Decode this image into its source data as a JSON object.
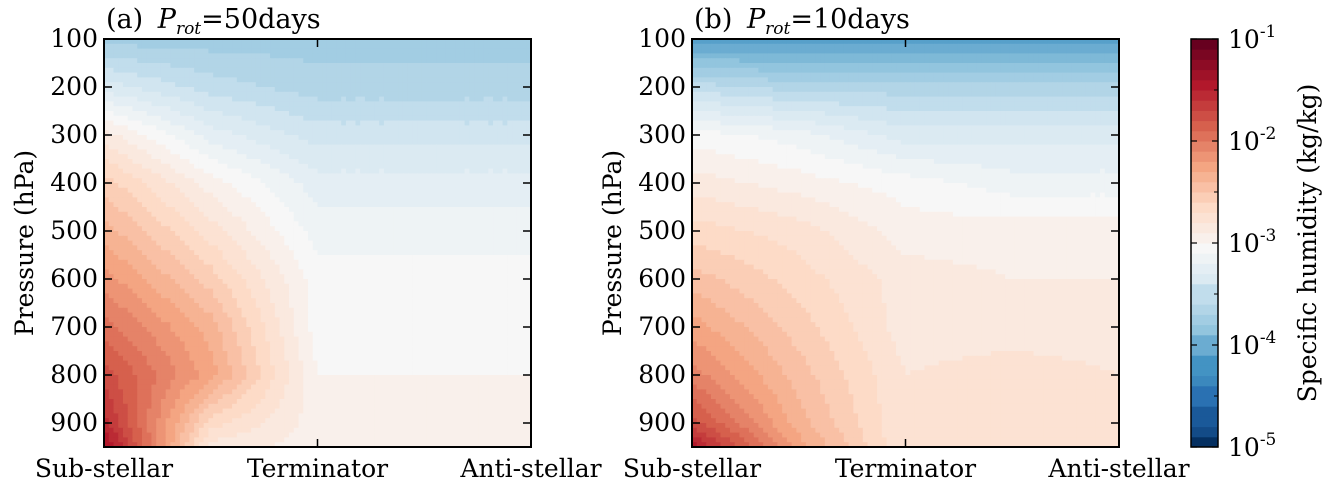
{
  "chart_data": [
    {
      "type": "heatmap",
      "panel_label": "(a)",
      "title_var": "P",
      "title_sub": "rot",
      "title_eq": "=50days",
      "ylabel": "Pressure (hPa)",
      "yticks": [
        "100",
        "200",
        "300",
        "400",
        "500",
        "600",
        "700",
        "800",
        "900"
      ],
      "ylim": [
        100,
        950
      ],
      "y_inverted": true,
      "xticks": [
        "Sub-stellar",
        "Terminator",
        "Anti-stellar"
      ],
      "x_positions": [
        0,
        0.5,
        1
      ],
      "grid": false,
      "approx_log10_humidity": {
        "x": [
          0,
          0.25,
          0.5,
          0.75,
          1
        ],
        "pressure": [
          100,
          200,
          300,
          400,
          500,
          600,
          700,
          800,
          900,
          950
        ],
        "values": [
          [
            -3.7,
            -3.7,
            -3.7,
            -3.7,
            -3.7
          ],
          [
            -3.3,
            -3.5,
            -3.6,
            -3.6,
            -3.6
          ],
          [
            -2.8,
            -3.2,
            -3.4,
            -3.4,
            -3.4
          ],
          [
            -2.5,
            -2.9,
            -3.2,
            -3.2,
            -3.2
          ],
          [
            -2.3,
            -2.7,
            -3.1,
            -3.1,
            -3.1
          ],
          [
            -2.1,
            -2.5,
            -3.0,
            -3.0,
            -3.0
          ],
          [
            -1.9,
            -2.3,
            -3.0,
            -3.0,
            -3.0
          ],
          [
            -1.7,
            -2.2,
            -2.95,
            -2.95,
            -2.95
          ],
          [
            -1.5,
            -2.6,
            -2.9,
            -2.9,
            -2.9
          ],
          [
            -1.3,
            -2.8,
            -2.9,
            -2.9,
            -2.9
          ]
        ]
      }
    },
    {
      "type": "heatmap",
      "panel_label": "(b)",
      "title_var": "P",
      "title_sub": "rot",
      "title_eq": "=10days",
      "ylabel": "Pressure (hPa)",
      "yticks": [
        "100",
        "200",
        "300",
        "400",
        "500",
        "600",
        "700",
        "800",
        "900"
      ],
      "ylim": [
        100,
        950
      ],
      "y_inverted": true,
      "xticks": [
        "Sub-stellar",
        "Terminator",
        "Anti-stellar"
      ],
      "x_positions": [
        0,
        0.5,
        1
      ],
      "grid": false,
      "approx_log10_humidity": {
        "x": [
          0,
          0.25,
          0.5,
          0.75,
          1
        ],
        "pressure": [
          100,
          200,
          300,
          400,
          500,
          600,
          700,
          800,
          900,
          950
        ],
        "values": [
          [
            -4.1,
            -4.1,
            -4.1,
            -4.1,
            -4.1
          ],
          [
            -3.5,
            -3.6,
            -3.6,
            -3.6,
            -3.6
          ],
          [
            -3.0,
            -3.1,
            -3.3,
            -3.3,
            -3.3
          ],
          [
            -2.8,
            -2.9,
            -3.0,
            -3.1,
            -3.1
          ],
          [
            -2.6,
            -2.7,
            -2.9,
            -2.9,
            -2.9
          ],
          [
            -2.4,
            -2.6,
            -2.8,
            -2.85,
            -2.85
          ],
          [
            -2.2,
            -2.5,
            -2.8,
            -2.8,
            -2.8
          ],
          [
            -2.0,
            -2.4,
            -2.75,
            -2.7,
            -2.75
          ],
          [
            -1.7,
            -2.3,
            -2.75,
            -2.7,
            -2.7
          ],
          [
            -1.4,
            -2.2,
            -2.75,
            -2.7,
            -2.7
          ]
        ]
      }
    }
  ],
  "colorbar": {
    "label": "Specific humidity (kg/kg)",
    "scale": "log",
    "range": [
      -5,
      -1
    ],
    "ticks": [
      {
        "base": "10",
        "exp": "-1"
      },
      {
        "base": "10",
        "exp": "-2"
      },
      {
        "base": "10",
        "exp": "-3"
      },
      {
        "base": "10",
        "exp": "-4"
      },
      {
        "base": "10",
        "exp": "-5"
      }
    ],
    "colormap": [
      "#053061",
      "#2166ac",
      "#4393c3",
      "#92c5de",
      "#d1e5f0",
      "#f7f7f7",
      "#fddbc7",
      "#f4a582",
      "#d6604d",
      "#b2182b",
      "#67001f"
    ]
  }
}
